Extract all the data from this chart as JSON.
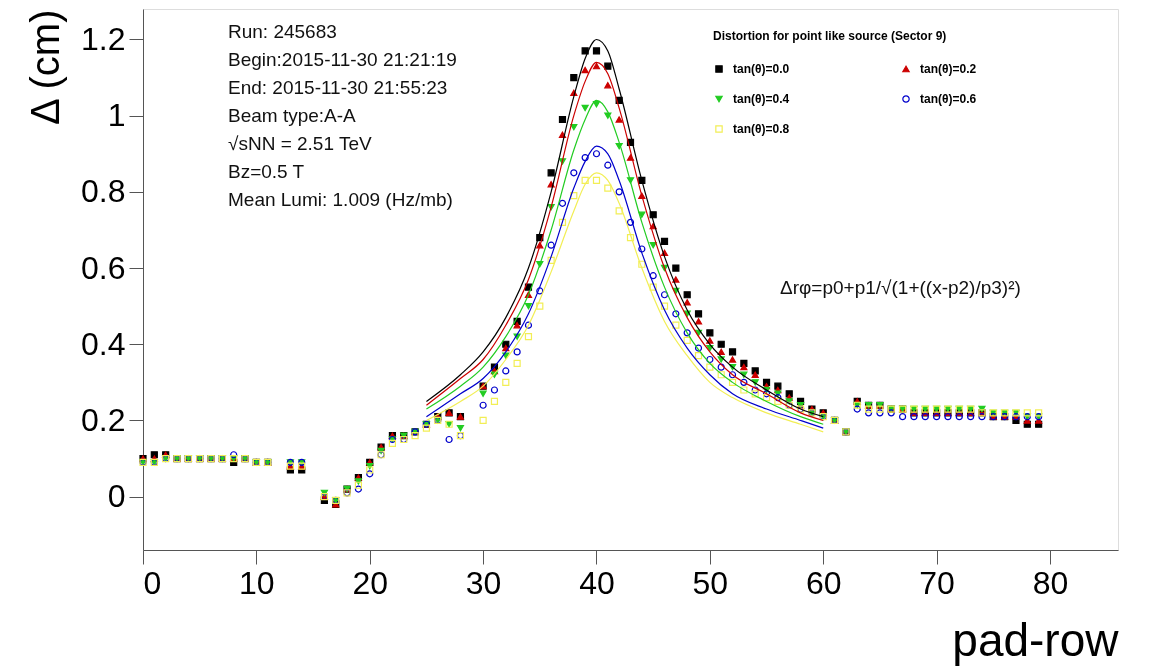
{
  "chart_data": {
    "type": "scatter",
    "xlabel": "pad-row",
    "ylabel": "Δ (cm)",
    "legend_title": "Distortion for point like source (Sector 9)",
    "x": [
      0,
      1,
      2,
      3,
      4,
      5,
      6,
      7,
      8,
      9,
      10,
      11,
      13,
      14,
      16,
      17,
      18,
      19,
      20,
      21,
      22,
      23,
      24,
      25,
      26,
      27,
      28,
      30,
      31,
      32,
      33,
      34,
      35,
      36,
      37,
      38,
      39,
      40,
      41,
      42,
      43,
      44,
      45,
      46,
      47,
      48,
      49,
      50,
      51,
      52,
      53,
      54,
      55,
      56,
      57,
      58,
      59,
      60,
      61,
      62,
      63,
      64,
      65,
      66,
      67,
      68,
      69,
      70,
      71,
      72,
      73,
      74,
      75,
      76,
      77,
      78,
      79
    ],
    "series": [
      {
        "name": "tan(θ)=0.0",
        "color": "#000000",
        "marker": "square",
        "values": [
          0.1,
          0.11,
          0.11,
          0.1,
          0.1,
          0.1,
          0.1,
          0.1,
          0.09,
          0.1,
          0.09,
          0.09,
          0.07,
          0.07,
          -0.01,
          -0.02,
          0.02,
          0.05,
          0.09,
          0.13,
          0.16,
          0.16,
          0.17,
          0.19,
          0.21,
          0.22,
          0.21,
          0.29,
          0.34,
          0.4,
          0.46,
          0.55,
          0.68,
          0.85,
          0.99,
          1.1,
          1.17,
          1.17,
          1.13,
          1.04,
          0.93,
          0.83,
          0.74,
          0.67,
          0.6,
          0.53,
          0.48,
          0.43,
          0.4,
          0.38,
          0.35,
          0.33,
          0.3,
          0.29,
          0.27,
          0.25,
          0.23,
          0.22,
          0.2,
          0.17,
          0.25,
          0.24,
          0.24,
          0.23,
          0.23,
          0.22,
          0.22,
          0.22,
          0.22,
          0.22,
          0.22,
          0.22,
          0.21,
          0.21,
          0.2,
          0.19,
          0.19
        ]
      },
      {
        "name": "tan(θ)=0.2",
        "color": "#cc0000",
        "marker": "triangle",
        "values": [
          0.1,
          0.1,
          0.11,
          0.1,
          0.1,
          0.1,
          0.1,
          0.1,
          0.1,
          0.1,
          0.09,
          0.09,
          0.08,
          0.08,
          0.0,
          -0.02,
          0.02,
          0.05,
          0.09,
          0.13,
          0.16,
          0.16,
          0.17,
          0.19,
          0.21,
          0.22,
          0.21,
          0.29,
          0.33,
          0.39,
          0.45,
          0.53,
          0.66,
          0.82,
          0.95,
          1.06,
          1.12,
          1.13,
          1.08,
          0.99,
          0.89,
          0.79,
          0.71,
          0.64,
          0.57,
          0.51,
          0.46,
          0.41,
          0.38,
          0.36,
          0.34,
          0.32,
          0.29,
          0.28,
          0.26,
          0.24,
          0.23,
          0.22,
          0.2,
          0.17,
          0.25,
          0.24,
          0.24,
          0.23,
          0.23,
          0.22,
          0.22,
          0.22,
          0.22,
          0.22,
          0.22,
          0.22,
          0.21,
          0.21,
          0.21,
          0.2,
          0.2
        ]
      },
      {
        "name": "tan(θ)=0.4",
        "color": "#22cc22",
        "marker": "triangle-down",
        "values": [
          0.09,
          0.09,
          0.1,
          0.1,
          0.1,
          0.1,
          0.1,
          0.1,
          0.1,
          0.1,
          0.09,
          0.09,
          0.09,
          0.09,
          0.01,
          -0.01,
          0.02,
          0.04,
          0.08,
          0.12,
          0.15,
          0.16,
          0.17,
          0.19,
          0.2,
          0.19,
          0.18,
          0.27,
          0.32,
          0.37,
          0.42,
          0.5,
          0.61,
          0.76,
          0.88,
          0.97,
          1.02,
          1.03,
          1.0,
          0.92,
          0.83,
          0.74,
          0.66,
          0.6,
          0.54,
          0.48,
          0.43,
          0.39,
          0.36,
          0.34,
          0.32,
          0.3,
          0.28,
          0.27,
          0.25,
          0.24,
          0.22,
          0.21,
          0.2,
          0.17,
          0.24,
          0.24,
          0.24,
          0.23,
          0.23,
          0.23,
          0.23,
          0.23,
          0.23,
          0.23,
          0.23,
          0.23,
          0.22,
          0.22,
          0.22,
          0.21,
          0.21
        ]
      },
      {
        "name": "tan(θ)=0.6",
        "color": "#0000cc",
        "marker": "circle-open",
        "values": [
          0.09,
          0.09,
          0.1,
          0.1,
          0.1,
          0.1,
          0.1,
          0.1,
          0.11,
          0.1,
          0.09,
          0.09,
          0.09,
          0.09,
          0.0,
          -0.01,
          0.01,
          0.02,
          0.06,
          0.11,
          0.15,
          0.15,
          0.17,
          0.19,
          0.2,
          0.15,
          0.16,
          0.24,
          0.28,
          0.33,
          0.38,
          0.45,
          0.54,
          0.66,
          0.77,
          0.85,
          0.89,
          0.9,
          0.87,
          0.8,
          0.72,
          0.65,
          0.58,
          0.53,
          0.48,
          0.43,
          0.39,
          0.36,
          0.34,
          0.32,
          0.3,
          0.28,
          0.27,
          0.26,
          0.24,
          0.23,
          0.22,
          0.21,
          0.2,
          0.17,
          0.23,
          0.22,
          0.22,
          0.22,
          0.21,
          0.21,
          0.21,
          0.21,
          0.21,
          0.21,
          0.21,
          0.21,
          0.21,
          0.21,
          0.21,
          0.21,
          0.21
        ]
      },
      {
        "name": "tan(θ)=0.8",
        "color": "#f2ee55",
        "marker": "square-open",
        "values": [
          0.09,
          0.09,
          0.1,
          0.1,
          0.1,
          0.1,
          0.1,
          0.1,
          0.1,
          0.1,
          0.09,
          0.09,
          0.08,
          0.08,
          0.0,
          -0.01,
          0.01,
          0.03,
          0.07,
          0.11,
          0.14,
          0.15,
          0.16,
          0.18,
          0.2,
          0.19,
          0.16,
          0.2,
          0.25,
          0.3,
          0.35,
          0.42,
          0.5,
          0.62,
          0.72,
          0.79,
          0.83,
          0.83,
          0.81,
          0.75,
          0.68,
          0.61,
          0.55,
          0.5,
          0.45,
          0.41,
          0.37,
          0.34,
          0.32,
          0.3,
          0.28,
          0.27,
          0.26,
          0.25,
          0.24,
          0.23,
          0.22,
          0.21,
          0.2,
          0.17,
          0.24,
          0.23,
          0.23,
          0.23,
          0.23,
          0.23,
          0.23,
          0.23,
          0.23,
          0.23,
          0.23,
          0.22,
          0.22,
          0.22,
          0.22,
          0.22,
          0.22
        ]
      },
      {
        "type": "line",
        "color": "#000000",
        "x": [
          25,
          28,
          30,
          32,
          34,
          36,
          38,
          39,
          40,
          41,
          42,
          44,
          46,
          48,
          50,
          52,
          55,
          58,
          60
        ],
        "values": [
          0.25,
          0.32,
          0.38,
          0.47,
          0.6,
          0.8,
          1.05,
          1.15,
          1.2,
          1.17,
          1.07,
          0.83,
          0.63,
          0.49,
          0.4,
          0.34,
          0.28,
          0.23,
          0.21
        ]
      },
      {
        "type": "line",
        "color": "#cc0000",
        "x": [
          25,
          28,
          30,
          32,
          34,
          36,
          38,
          39,
          40,
          41,
          42,
          44,
          46,
          48,
          50,
          52,
          55,
          58,
          60
        ],
        "values": [
          0.24,
          0.31,
          0.36,
          0.45,
          0.57,
          0.76,
          1.0,
          1.09,
          1.14,
          1.11,
          1.02,
          0.79,
          0.6,
          0.47,
          0.38,
          0.32,
          0.27,
          0.22,
          0.2
        ]
      },
      {
        "type": "line",
        "color": "#22cc22",
        "x": [
          25,
          28,
          30,
          32,
          34,
          36,
          38,
          39,
          40,
          41,
          42,
          44,
          46,
          48,
          50,
          52,
          55,
          58,
          60
        ],
        "values": [
          0.23,
          0.29,
          0.34,
          0.42,
          0.53,
          0.7,
          0.91,
          0.99,
          1.04,
          1.01,
          0.93,
          0.72,
          0.55,
          0.43,
          0.35,
          0.3,
          0.25,
          0.21,
          0.19
        ]
      },
      {
        "type": "line",
        "color": "#0000cc",
        "x": [
          25,
          28,
          30,
          32,
          34,
          36,
          38,
          39,
          40,
          41,
          42,
          44,
          46,
          48,
          50,
          52,
          55,
          58,
          60
        ],
        "values": [
          0.21,
          0.27,
          0.31,
          0.38,
          0.48,
          0.63,
          0.81,
          0.88,
          0.92,
          0.9,
          0.83,
          0.64,
          0.49,
          0.39,
          0.32,
          0.27,
          0.23,
          0.2,
          0.18
        ]
      },
      {
        "type": "line",
        "color": "#f2ee55",
        "x": [
          25,
          28,
          30,
          32,
          34,
          36,
          38,
          39,
          40,
          41,
          42,
          44,
          46,
          48,
          50,
          52,
          55,
          58,
          60
        ],
        "values": [
          0.2,
          0.25,
          0.29,
          0.36,
          0.45,
          0.59,
          0.75,
          0.82,
          0.85,
          0.83,
          0.77,
          0.6,
          0.46,
          0.37,
          0.3,
          0.26,
          0.22,
          0.19,
          0.17
        ]
      }
    ],
    "xlim": [
      0,
      86
    ],
    "ylim": [
      -0.14,
      1.28
    ],
    "xticks": [
      0,
      10,
      20,
      30,
      40,
      50,
      60,
      70,
      80
    ],
    "yticks": [
      0,
      0.2,
      0.4,
      0.6,
      0.8,
      1,
      1.2
    ],
    "grid": false,
    "legend": "top right",
    "annotations": [
      "Run:   245683",
      "Begin:2015-11-30 21:21:19",
      "End:  2015-11-30 21:55:23",
      "Beam type:A-A",
      "√sNN = 2.51 TeV",
      "Bz=0.5 T",
      "Mean Lumi:  1.009 (Hz/mb)",
      "Δrφ=p0+p1/√(1+((x-p2)/p3)²)"
    ]
  }
}
